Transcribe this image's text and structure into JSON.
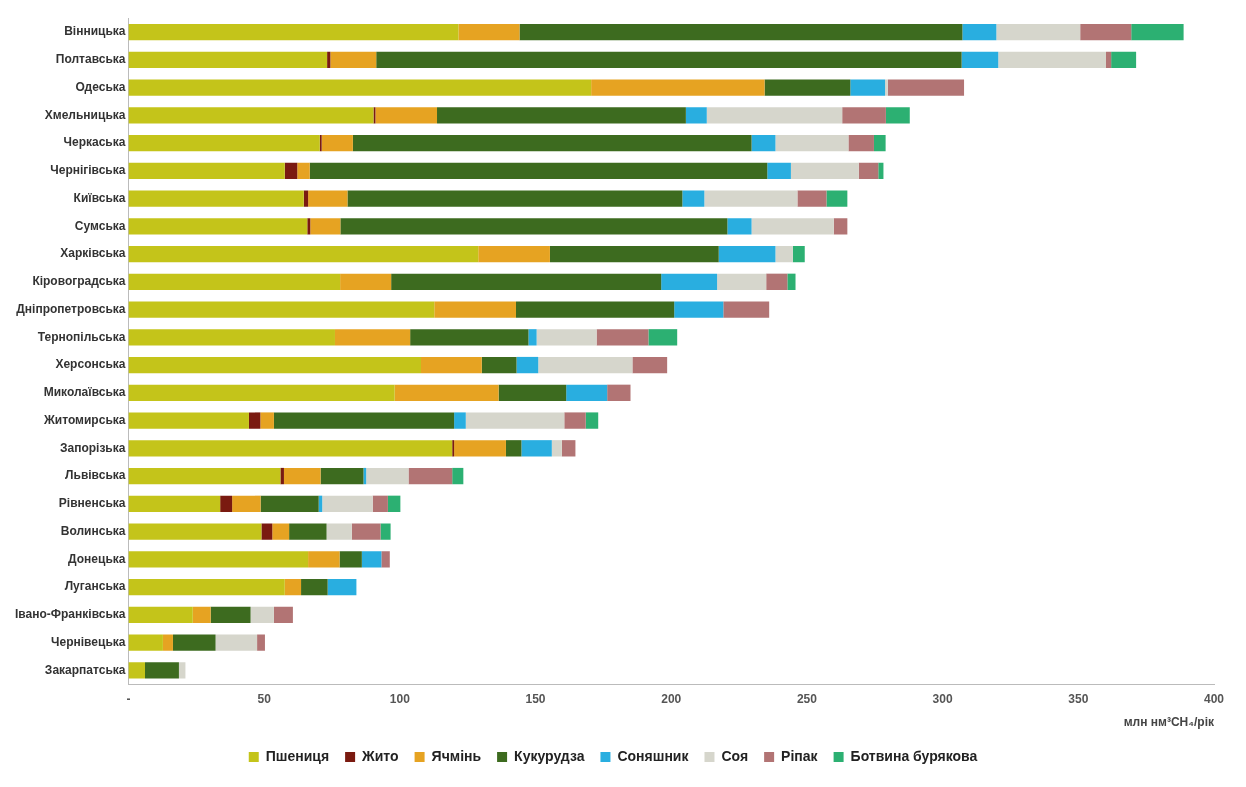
{
  "chart_data": {
    "type": "bar",
    "orientation": "horizontal",
    "stacked": true,
    "xlabel": "млн нм³CH₄/рік",
    "grid": false,
    "legend": "bottom",
    "categories": [
      "Вінницька",
      "Полтавська",
      "Одеська",
      "Хмельницька",
      "Черкаська",
      "Чернігівська",
      "Київська",
      "Сумська",
      "Харківська",
      "Кіровоградська",
      "Дніпропетровська",
      "Тернопільська",
      "Херсонська",
      "Миколаївська",
      "Житомирська",
      "Запорізька",
      "Львівська",
      "Рівненська",
      "Волинська",
      "Донецька",
      "Луганська",
      "Івано-Франківська",
      "Чернівецька",
      "Закарпатська"
    ],
    "xlim": [
      0,
      400
    ],
    "xticks": [
      {
        "value": 0,
        "label": "-"
      },
      50,
      100,
      150,
      200,
      250,
      300,
      350,
      400
    ],
    "series": [
      {
        "name": "Пшениця",
        "color": "#c4c41a",
        "values": [
          121.6,
          73.2,
          170.5,
          90.3,
          70.5,
          57.6,
          64.6,
          65.9,
          128.9,
          78.0,
          112.7,
          76.1,
          107.8,
          98.1,
          44.4,
          119.3,
          56.0,
          33.8,
          49.0,
          66.2,
          57.6,
          23.7,
          12.7,
          6.1
        ]
      },
      {
        "name": "Жито",
        "color": "#7a1a10",
        "values": [
          0,
          1.2,
          0,
          0.7,
          0.7,
          4.6,
          1.6,
          1.1,
          0,
          0,
          0,
          0,
          0,
          0,
          4.2,
          0.7,
          1.3,
          4.4,
          4.0,
          0,
          0,
          0,
          0,
          0
        ]
      },
      {
        "name": "Ячмінь",
        "color": "#e6a322",
        "values": [
          22.5,
          16.9,
          63.9,
          22.7,
          11.5,
          4.6,
          14.5,
          11.1,
          26.4,
          18.8,
          30.1,
          27.7,
          22.4,
          38.3,
          5.0,
          19.1,
          13.5,
          10.5,
          6.2,
          11.6,
          6.0,
          6.6,
          3.7,
          0
        ]
      },
      {
        "name": "Кукурудза",
        "color": "#3d6b1f",
        "values": [
          163.2,
          215.7,
          31.6,
          91.7,
          146.9,
          168.6,
          123.4,
          142.6,
          62.2,
          99.5,
          58.3,
          43.6,
          12.8,
          24.9,
          66.4,
          5.7,
          15.8,
          21.4,
          13.8,
          8.2,
          9.8,
          14.7,
          15.7,
          12.5
        ]
      },
      {
        "name": "Соняшник",
        "color": "#29aee0",
        "values": [
          12.5,
          13.5,
          12.8,
          7.7,
          8.8,
          8.7,
          8.1,
          8.9,
          20.9,
          20.6,
          18.1,
          3.0,
          8.0,
          15.1,
          4.3,
          11.2,
          1.0,
          1.3,
          0,
          7.2,
          10.6,
          0,
          0,
          0
        ]
      },
      {
        "name": "Соя",
        "color": "#d6d6cc",
        "values": [
          30.9,
          39.7,
          1,
          49.9,
          26.9,
          25.0,
          34.3,
          30.3,
          6.4,
          18.1,
          0,
          22.1,
          34.7,
          0,
          36.3,
          3.7,
          15.6,
          18.6,
          9.3,
          0,
          0,
          8.6,
          15.3,
          2.4
        ]
      },
      {
        "name": "Ріпак",
        "color": "#b27474",
        "values": [
          18.8,
          1.9,
          28.1,
          16.1,
          9.4,
          7.2,
          10.7,
          5.0,
          0,
          7.8,
          16.9,
          19.1,
          12.8,
          8.6,
          7.9,
          5.0,
          16.1,
          5.6,
          10.6,
          3.1,
          0,
          7.0,
          2.9,
          0
        ]
      },
      {
        "name": "Ботвина бурякова",
        "color": "#2cb072",
        "values": [
          19.3,
          9.2,
          0,
          8.8,
          4.3,
          1.9,
          7.7,
          0,
          4.4,
          3.0,
          0,
          10.6,
          0,
          0,
          4.6,
          0,
          4.1,
          4.6,
          3.7,
          0,
          0,
          0,
          0,
          0
        ]
      }
    ]
  }
}
